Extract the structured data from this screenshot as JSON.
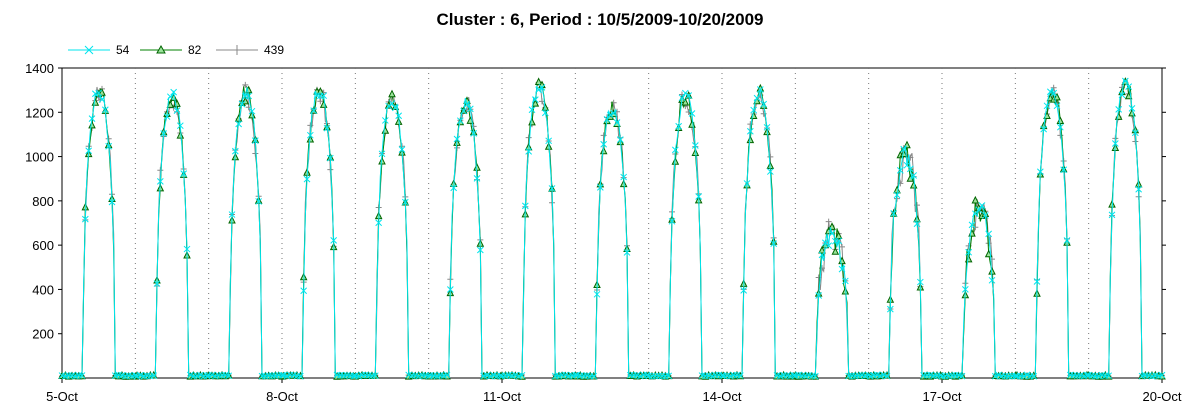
{
  "chart_data": {
    "type": "line",
    "title": "Cluster : 6, Period : 10/5/2009-10/20/2009",
    "xlabel": "",
    "ylabel": "",
    "x_range": [
      "5-Oct",
      "20-Oct"
    ],
    "ylim": [
      0,
      1400
    ],
    "y_ticks": [
      200,
      400,
      600,
      800,
      1000,
      1200,
      1400
    ],
    "x_tick_labels": [
      "5-Oct",
      "8-Oct",
      "11-Oct",
      "14-Oct",
      "17-Oct",
      "20-Oct"
    ],
    "grid": "vertical dotted lines at each day",
    "legend_position": "top-left",
    "series": [
      {
        "name": "54",
        "color": "#00e5ee",
        "marker": "x"
      },
      {
        "name": "82",
        "color": "#008000",
        "marker": "triangle"
      },
      {
        "name": "439",
        "color": "#888888",
        "marker": "plus"
      }
    ],
    "days": [
      {
        "date": "5-Oct",
        "peak": 1290
      },
      {
        "date": "6-Oct",
        "peak": 1270
      },
      {
        "date": "7-Oct",
        "peak": 1290
      },
      {
        "date": "8-Oct",
        "peak": 1300
      },
      {
        "date": "9-Oct",
        "peak": 1260
      },
      {
        "date": "10-Oct",
        "peak": 1240
      },
      {
        "date": "11-Oct",
        "peak": 1310
      },
      {
        "date": "12-Oct",
        "peak": 1220
      },
      {
        "date": "13-Oct",
        "peak": 1270
      },
      {
        "date": "14-Oct",
        "peak": 1280
      },
      {
        "date": "15-Oct",
        "peak": 650
      },
      {
        "date": "16-Oct",
        "peak": 1000
      },
      {
        "date": "17-Oct",
        "peak": 760
      },
      {
        "date": "18-Oct",
        "peak": 1290
      },
      {
        "date": "19-Oct",
        "peak": 1330
      }
    ]
  }
}
